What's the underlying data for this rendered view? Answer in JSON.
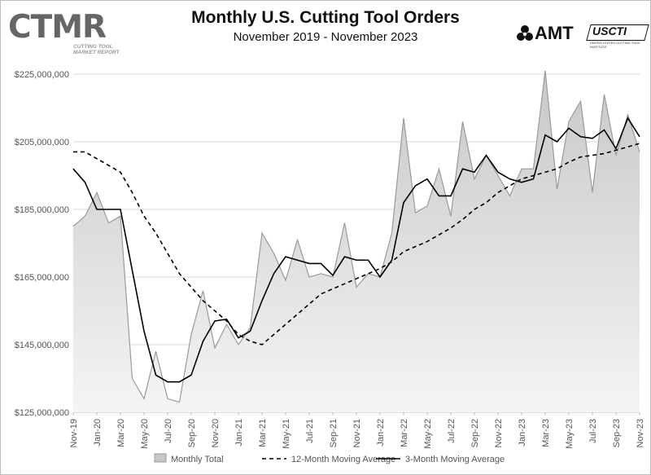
{
  "header": {
    "title": "Monthly U.S. Cutting Tool Orders",
    "subtitle": "November 2019 - November 2023"
  },
  "logos": {
    "left_main": "CTMR",
    "left_sub_line1": "CUTTING TOOL",
    "left_sub_line2": "MARKET REPORT",
    "right_amt": "AMT",
    "right_usctI": "USCTI",
    "right_usctI_tagline": "UNITED STATES CUTTING TOOL INSTITUTE"
  },
  "colors": {
    "area_fill_top": "#c8c8c8",
    "area_fill_bottom": "#f4f4f4",
    "area_stroke": "#9a9a9a",
    "line": "#000000",
    "axis_text": "#555555"
  },
  "chart_data": {
    "type": "area",
    "ylim": [
      125000000,
      225000000
    ],
    "y_ticks": [
      125000000,
      145000000,
      165000000,
      185000000,
      205000000,
      225000000
    ],
    "y_tick_labels": [
      "$125,000,000",
      "$145,000,000",
      "$165,000,000",
      "$185,000,000",
      "$205,000,000",
      "$225,000,000"
    ],
    "x_tick_labels": [
      "Nov-19",
      "Jan-20",
      "Mar-20",
      "May-20",
      "Jul-20",
      "Sep-20",
      "Nov-20",
      "Jan-21",
      "Mar-21",
      "May-21",
      "Jul-21",
      "Sep-21",
      "Nov-21",
      "Jan-22",
      "Mar-22",
      "May-22",
      "Jul-22",
      "Sep-22",
      "Nov-22",
      "Jan-23",
      "Mar-23",
      "May-23",
      "Jul-23",
      "Sep-23",
      "Nov-23"
    ],
    "legend_position": "bottom",
    "series": [
      {
        "name": "Monthly Total",
        "style": "area",
        "values": [
          180000000,
          183000000,
          190000000,
          181000000,
          183000000,
          135000000,
          129000000,
          143000000,
          129000000,
          128000000,
          148000000,
          161000000,
          144000000,
          151000000,
          145000000,
          150000000,
          178000000,
          172000000,
          164000000,
          176000000,
          165000000,
          166000000,
          165000000,
          181000000,
          162000000,
          166000000,
          165000000,
          178000000,
          212000000,
          184000000,
          186000000,
          197000000,
          183000000,
          211000000,
          194000000,
          201000000,
          195000000,
          189000000,
          197000000,
          197000000,
          226000000,
          191000000,
          211000000,
          217000000,
          190000000,
          219000000,
          201000000,
          213000000,
          202000000
        ]
      },
      {
        "name": "12-Month Moving Average",
        "style": "dashed",
        "values": [
          202000000,
          202000000,
          200000000,
          198000000,
          196000000,
          190000000,
          183000000,
          178000000,
          172000000,
          166000000,
          162000000,
          158000000,
          155000000,
          152000000,
          148000000,
          146000000,
          145000000,
          148000000,
          151000000,
          154000000,
          157000000,
          160000000,
          161500000,
          163000000,
          164500000,
          166000000,
          167500000,
          169500000,
          172500000,
          174000000,
          175500000,
          177500000,
          179500000,
          182000000,
          185000000,
          187000000,
          190000000,
          192000000,
          194000000,
          195000000,
          196000000,
          197000000,
          199000000,
          200500000,
          201000000,
          201500000,
          202500000,
          203500000,
          204500000
        ]
      },
      {
        "name": "3-Month Moving Average",
        "style": "solid",
        "values": [
          197000000,
          193000000,
          185000000,
          185000000,
          185000000,
          167000000,
          149000000,
          136000000,
          134000000,
          134000000,
          136000000,
          146000000,
          152000000,
          152500000,
          147000000,
          149000000,
          158000000,
          166000000,
          171000000,
          170000000,
          169000000,
          169000000,
          165500000,
          171000000,
          170000000,
          170000000,
          165000000,
          170000000,
          187000000,
          192000000,
          194000000,
          189000000,
          189000000,
          197000000,
          196000000,
          201000000,
          196000000,
          194000000,
          193000000,
          194000000,
          207000000,
          205000000,
          209000000,
          206500000,
          206000000,
          208500000,
          203000000,
          212000000,
          206500000
        ]
      }
    ]
  }
}
